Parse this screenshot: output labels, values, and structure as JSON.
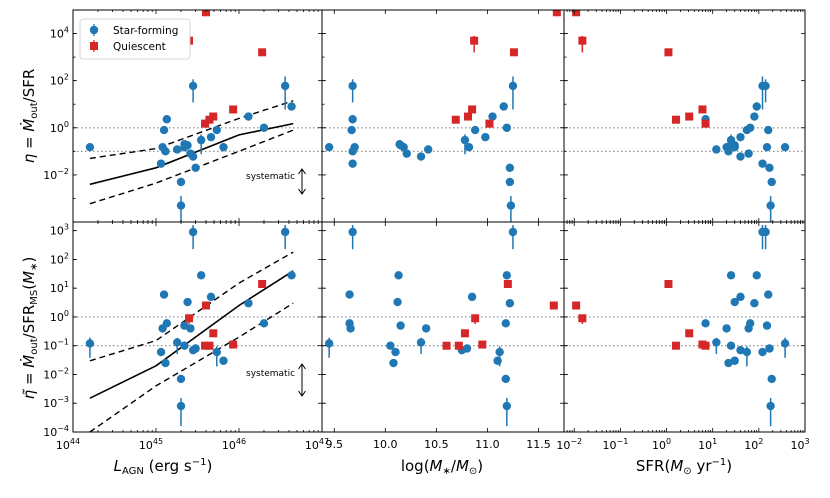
{
  "chart_data": {
    "type": "scatter",
    "legend": {
      "position": "top-left",
      "entries": [
        "Star-forming",
        "Quiescent"
      ]
    },
    "colors": {
      "sf": "#1f77b4",
      "q": "#d62728",
      "ref_line": "#888888"
    },
    "reference_lines_y": [
      1,
      0.1
    ],
    "annotation": {
      "text": "systematic"
    },
    "columns": [
      {
        "id": "lagn",
        "xlabel": "L_AGN (erg s^-1)",
        "xscale": "log",
        "xlim": [
          1e+44,
          1e+47
        ],
        "xticks": [
          {
            "v": 1e+44,
            "b": "10",
            "e": "44"
          },
          {
            "v": 1e+45,
            "b": "10",
            "e": "45"
          },
          {
            "v": 1e+46,
            "b": "10",
            "e": "46"
          },
          {
            "v": 1e+47,
            "b": "10",
            "e": "47"
          }
        ]
      },
      {
        "id": "mstar",
        "xlabel": "log(M*/M_sun)",
        "xscale": "linear",
        "xlim": [
          9.38,
          11.75
        ],
        "xticks": [
          {
            "v": 9.5,
            "t": "9.5"
          },
          {
            "v": 10.0,
            "t": "10.0"
          },
          {
            "v": 10.5,
            "t": "10.5"
          },
          {
            "v": 11.0,
            "t": "11.0"
          },
          {
            "v": 11.5,
            "t": "11.5"
          }
        ]
      },
      {
        "id": "sfr",
        "xlabel": "SFR(M_sun yr^-1)",
        "xscale": "log",
        "xlim": [
          0.006,
          1000
        ],
        "xticks": [
          {
            "v": 0.01,
            "b": "10",
            "e": "−2"
          },
          {
            "v": 0.1,
            "b": "10",
            "e": "−1"
          },
          {
            "v": 1,
            "b": "10",
            "e": "0"
          },
          {
            "v": 10,
            "b": "10",
            "e": "1"
          },
          {
            "v": 100,
            "b": "10",
            "e": "2"
          },
          {
            "v": 1000,
            "b": "10",
            "e": "3"
          }
        ]
      }
    ],
    "rows": [
      {
        "id": "eta",
        "ylabel": "η = Ṁout/SFR",
        "yscale": "log",
        "ylim": [
          0.0001,
          100000
        ],
        "yticks": [
          {
            "v": 0.01,
            "b": "10",
            "e": "−2"
          },
          {
            "v": 1,
            "b": "10",
            "e": "0"
          },
          {
            "v": 100,
            "b": "10",
            "e": "2"
          },
          {
            "v": 10000,
            "b": "10",
            "e": "4"
          }
        ],
        "fit": {
          "x": [
            1.6e+44,
            1e+45,
            1e+46,
            4.5e+46
          ],
          "median": [
            0.004,
            0.02,
            0.5,
            1.5
          ],
          "upper": [
            0.05,
            0.13,
            2.5,
            14
          ],
          "lower": [
            0.0006,
            0.0045,
            0.1,
            0.8
          ]
        },
        "star_forming": [
          {
            "L": 1.6e+44,
            "M": 9.45,
            "S": 370,
            "y": 0.15,
            "err": 0
          },
          {
            "L": 1.35e+45,
            "M": 9.68,
            "S": 7,
            "y": 2.3,
            "err": 0
          },
          {
            "L": 1.25e+45,
            "M": 9.67,
            "S": 160,
            "y": 0.8,
            "err": 0
          },
          {
            "L": 1.2e+45,
            "M": 9.7,
            "S": 20,
            "y": 0.15,
            "err": 0
          },
          {
            "L": 1.3e+45,
            "M": 9.68,
            "S": 22,
            "y": 0.1,
            "err": 0
          },
          {
            "L": 1.15e+45,
            "M": 9.68,
            "S": 120,
            "y": 0.03,
            "err": 0
          },
          {
            "L": 1.8e+45,
            "M": 10.42,
            "S": 12,
            "y": 0.12,
            "err": 0
          },
          {
            "L": 2.2e+45,
            "M": 10.18,
            "S": 150,
            "y": 0.15,
            "err": 0
          },
          {
            "L": 2.4e+45,
            "M": 10.15,
            "S": 30,
            "y": 0.18,
            "err": 0
          },
          {
            "L": 2.2e+45,
            "M": 10.14,
            "S": 25,
            "y": 0.2,
            "err": 0
          },
          {
            "L": 2.6e+45,
            "M": 10.21,
            "S": 60,
            "y": 0.08,
            "err": 0
          },
          {
            "L": 2.8e+45,
            "M": 10.35,
            "S": 40,
            "y": 0.06,
            "err": 0
          },
          {
            "L": 2e+45,
            "M": 11.22,
            "S": 190,
            "y": 0.005,
            "err": 0
          },
          {
            "L": 3e+45,
            "M": 11.22,
            "S": 170,
            "y": 0.02,
            "err": 0
          },
          {
            "L": 4.6e+45,
            "M": 10.98,
            "S": 40,
            "y": 0.4,
            "err": 0
          },
          {
            "L": 5.4e+45,
            "M": 10.88,
            "S": 55,
            "y": 0.8,
            "err": 0
          },
          {
            "L": 6.5e+45,
            "M": 10.82,
            "S": 30,
            "y": 0.15,
            "err": 0
          },
          {
            "L": 1.3e+46,
            "M": 11.05,
            "S": 80,
            "y": 3.0,
            "err": 0
          },
          {
            "L": 2e+46,
            "M": 11.19,
            "S": 65,
            "y": 1.0,
            "err": 0
          },
          {
            "L": 3.6e+46,
            "M": 11.25,
            "S": 120,
            "y": 60,
            "err": 1.0
          },
          {
            "L": 4.3e+46,
            "M": 11.16,
            "S": 90,
            "y": 8,
            "err": 0
          },
          {
            "L": 2e+45,
            "M": 11.23,
            "S": 180,
            "y": 0.0005,
            "err": 1.0
          },
          {
            "L": 2.8e+45,
            "M": 9.68,
            "S": 140,
            "y": 60,
            "err": 0.7
          },
          {
            "L": 3.5e+45,
            "M": 10.78,
            "S": 25,
            "y": 0.3,
            "err": 0.6
          }
        ],
        "quiescent": [
          {
            "L": 2.5e+45,
            "M": 10.87,
            "S": 0.015,
            "y": 5000,
            "err": 1.0
          },
          {
            "L": 4e+45,
            "M": 11.68,
            "S": 0.011,
            "y": 80000,
            "err": 0
          },
          {
            "L": 1.9e+46,
            "M": 11.26,
            "S": 1.1,
            "y": 1600,
            "err": 0
          },
          {
            "L": 4.4e+45,
            "M": 10.69,
            "S": 1.6,
            "y": 2.2,
            "err": 0
          },
          {
            "L": 4.9e+45,
            "M": 10.81,
            "S": 3.1,
            "y": 3.0,
            "err": 0
          },
          {
            "L": 8.5e+45,
            "M": 10.85,
            "S": 6.0,
            "y": 6.0,
            "err": 0
          },
          {
            "L": 3.9e+45,
            "M": 11.02,
            "S": 7.0,
            "y": 1.5,
            "err": 0
          }
        ]
      },
      {
        "id": "eta_tilde",
        "ylabel": "η̃ = Ṁout/SFRMS(M*)",
        "yscale": "log",
        "ylim": [
          0.0001,
          2000
        ],
        "yticks": [
          {
            "v": 0.0001,
            "b": "10",
            "e": "−4"
          },
          {
            "v": 0.001,
            "b": "10",
            "e": "−3"
          },
          {
            "v": 0.01,
            "b": "10",
            "e": "−2"
          },
          {
            "v": 0.1,
            "b": "10",
            "e": "−1"
          },
          {
            "v": 1,
            "b": "10",
            "e": "0"
          },
          {
            "v": 10,
            "b": "10",
            "e": "1"
          },
          {
            "v": 100,
            "b": "10",
            "e": "2"
          },
          {
            "v": 1000,
            "b": "10",
            "e": "3"
          }
        ],
        "fit": {
          "x": [
            1.6e+44,
            1e+45,
            1e+46,
            4.5e+46
          ],
          "median": [
            0.0015,
            0.02,
            2.5,
            40
          ],
          "upper": [
            0.03,
            0.15,
            15,
            180
          ],
          "lower": [
            0.0001,
            0.004,
            0.2,
            3
          ]
        },
        "star_forming": [
          {
            "L": 1.6e+44,
            "M": 9.45,
            "S": 370,
            "y": 0.12,
            "err": 0.5
          },
          {
            "L": 1.35e+45,
            "M": 9.65,
            "S": 7,
            "y": 0.6,
            "err": 0
          },
          {
            "L": 1.25e+45,
            "M": 9.65,
            "S": 160,
            "y": 6,
            "err": 0
          },
          {
            "L": 1.2e+45,
            "M": 9.66,
            "S": 20,
            "y": 0.4,
            "err": 0
          },
          {
            "L": 1.3e+45,
            "M": 10.08,
            "S": 22,
            "y": 0.025,
            "err": 0
          },
          {
            "L": 1.15e+45,
            "M": 10.1,
            "S": 120,
            "y": 0.06,
            "err": 0
          },
          {
            "L": 1.8e+45,
            "M": 10.35,
            "S": 12,
            "y": 0.13,
            "err": 0.4
          },
          {
            "L": 2.2e+45,
            "M": 10.15,
            "S": 150,
            "y": 0.5,
            "err": 0
          },
          {
            "L": 2.4e+45,
            "M": 10.12,
            "S": 30,
            "y": 3.3,
            "err": 0
          },
          {
            "L": 2.2e+45,
            "M": 10.05,
            "S": 25,
            "y": 0.1,
            "err": 0
          },
          {
            "L": 2.6e+45,
            "M": 10.4,
            "S": 60,
            "y": 0.4,
            "err": 0
          },
          {
            "L": 2.8e+45,
            "M": 10.75,
            "S": 40,
            "y": 0.07,
            "err": 0
          },
          {
            "L": 2e+45,
            "M": 11.18,
            "S": 190,
            "y": 0.007,
            "err": 0
          },
          {
            "L": 3e+45,
            "M": 10.8,
            "S": 170,
            "y": 0.08,
            "err": 0
          },
          {
            "L": 4.6e+45,
            "M": 10.85,
            "S": 40,
            "y": 5,
            "err": 0
          },
          {
            "L": 5.4e+45,
            "M": 11.12,
            "S": 55,
            "y": 0.06,
            "err": 0.5
          },
          {
            "L": 6.5e+45,
            "M": 11.1,
            "S": 30,
            "y": 0.03,
            "err": 0
          },
          {
            "L": 1.3e+46,
            "M": 11.22,
            "S": 80,
            "y": 3.0,
            "err": 0
          },
          {
            "L": 2e+46,
            "M": 11.18,
            "S": 65,
            "y": 0.6,
            "err": 0
          },
          {
            "L": 3.6e+46,
            "M": 11.25,
            "S": 120,
            "y": 900,
            "err": 0.6
          },
          {
            "L": 4.3e+46,
            "M": 11.19,
            "S": 90,
            "y": 28,
            "err": 0
          },
          {
            "L": 2e+45,
            "M": 11.19,
            "S": 180,
            "y": 0.0008,
            "err": 0.7
          },
          {
            "L": 2.8e+45,
            "M": 9.68,
            "S": 140,
            "y": 900,
            "err": 0.6
          },
          {
            "L": 3.5e+45,
            "M": 10.13,
            "S": 25,
            "y": 28,
            "err": 0
          }
        ],
        "quiescent": [
          {
            "L": 2.5e+45,
            "M": 10.88,
            "S": 0.015,
            "y": 0.9,
            "err": 0.4
          },
          {
            "L": 4e+45,
            "M": 11.65,
            "S": 0.011,
            "y": 2.5,
            "err": 0
          },
          {
            "L": 1.9e+46,
            "M": 11.2,
            "S": 1.1,
            "y": 14,
            "err": 0
          },
          {
            "L": 4.4e+45,
            "M": 10.6,
            "S": 1.6,
            "y": 0.1,
            "err": 0
          },
          {
            "L": 4.9e+45,
            "M": 10.78,
            "S": 3.1,
            "y": 0.27,
            "err": 0
          },
          {
            "L": 8.5e+45,
            "M": 10.95,
            "S": 6.0,
            "y": 0.11,
            "err": 0
          },
          {
            "L": 3.9e+45,
            "M": 10.72,
            "S": 7.0,
            "y": 0.1,
            "err": 0
          }
        ]
      }
    ]
  }
}
